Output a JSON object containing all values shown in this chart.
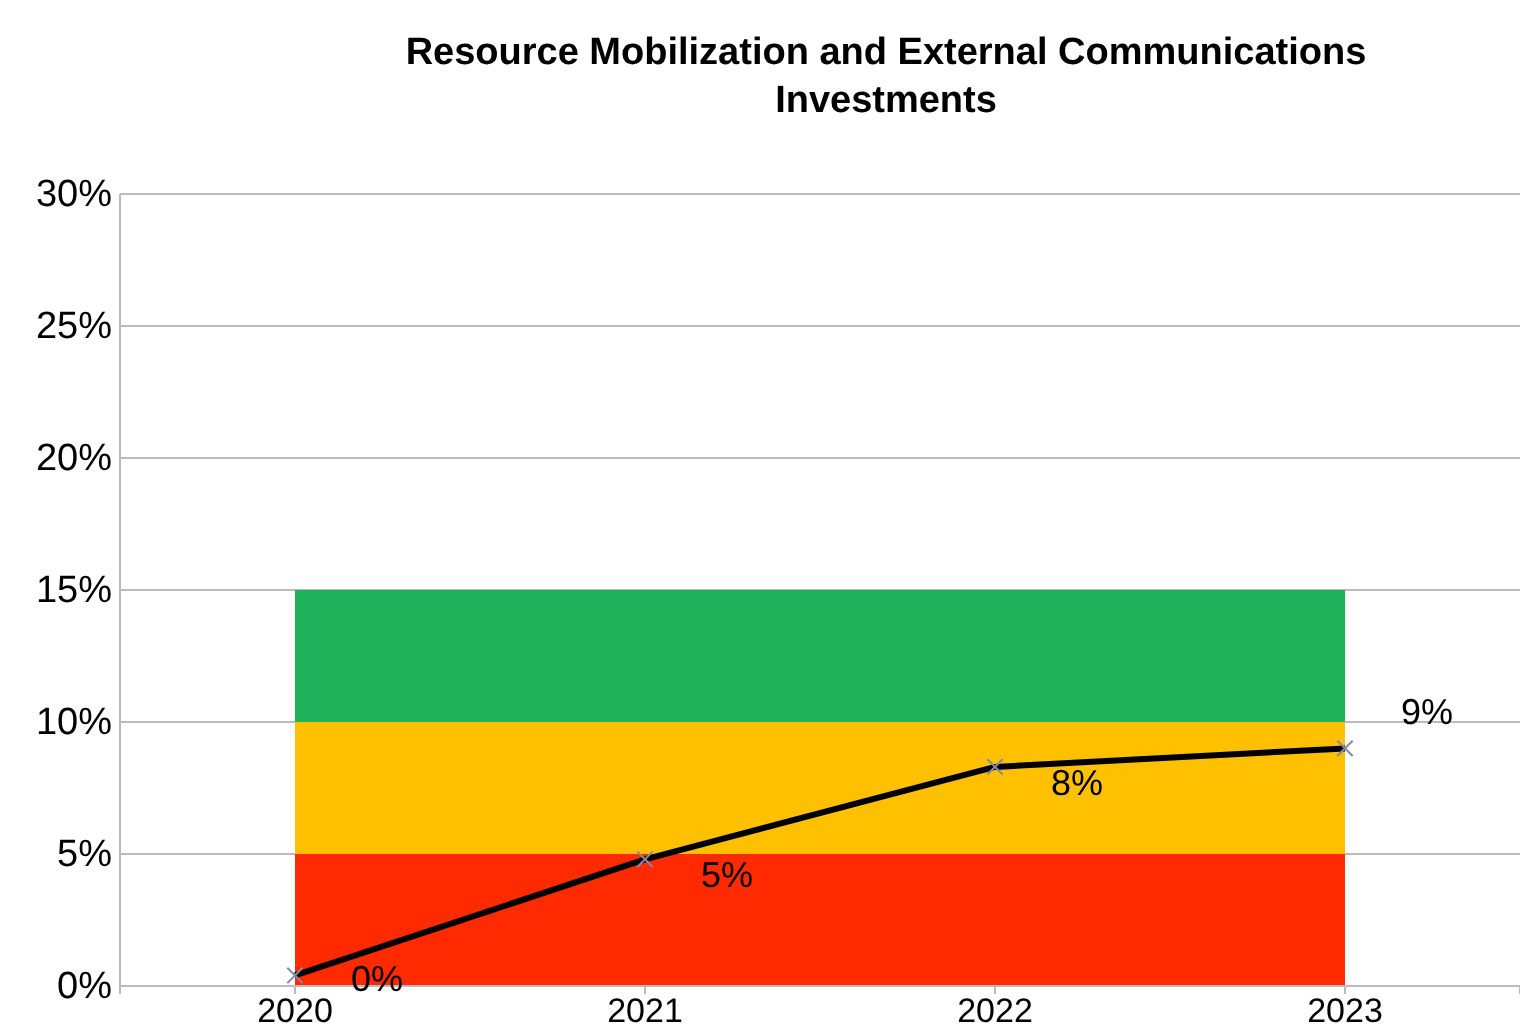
{
  "chart_data": {
    "type": "line",
    "title": "Resource Mobilization and External Communications Investments",
    "categories": [
      "2020",
      "2021",
      "2022",
      "2023"
    ],
    "series": [
      {
        "color": "#000000",
        "values": [
          0.4,
          4.8,
          8.3,
          9.0
        ],
        "value_labels": [
          "0%",
          "5%",
          "8%",
          "9%"
        ]
      }
    ],
    "ylim": [
      0,
      30
    ],
    "yticks": [
      {
        "value": 0,
        "label": "0%"
      },
      {
        "value": 5,
        "label": "5%"
      },
      {
        "value": 10,
        "label": "10%"
      },
      {
        "value": 15,
        "label": "15%"
      },
      {
        "value": 20,
        "label": "20%"
      },
      {
        "value": 25,
        "label": "25%"
      },
      {
        "value": 30,
        "label": "30%"
      }
    ],
    "bands": [
      {
        "axis": "y",
        "from": 0,
        "to": 5,
        "color": "#ff2a00"
      },
      {
        "axis": "y",
        "from": 5,
        "to": 10,
        "color": "#ffc000"
      },
      {
        "axis": "y",
        "from": 10,
        "to": 15,
        "color": "#1fb25a"
      }
    ],
    "grid": "y",
    "marker": "cross",
    "line_style": "solid"
  }
}
